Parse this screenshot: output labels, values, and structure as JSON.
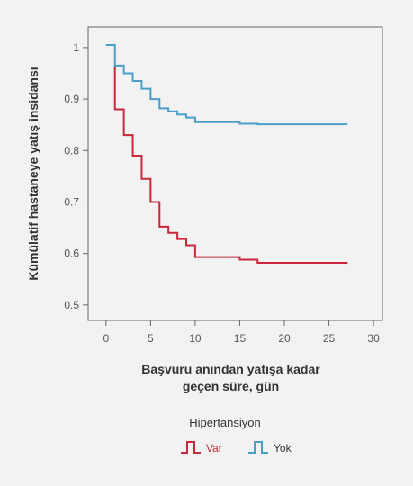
{
  "chart_data": {
    "type": "line",
    "step": true,
    "ylabel": "Kümülatif hastaneye yatış insidansı",
    "xlabel_lines": [
      "Başvuru anından yatışa kadar",
      "geçen süre, gün"
    ],
    "xlim": [
      -2,
      31
    ],
    "ylim": [
      0.47,
      1.04
    ],
    "xticks": [
      0,
      5,
      10,
      15,
      20,
      25,
      30
    ],
    "yticks": [
      0.5,
      0.6,
      0.7,
      0.8,
      0.9,
      1
    ],
    "ytick_labels": [
      "0.5",
      "0.6",
      "0.7",
      "0.8",
      "0.9",
      "1"
    ],
    "grid": false,
    "legend": {
      "title": "Hipertansiyon",
      "position": "bottom-center"
    },
    "series": [
      {
        "name": "Var",
        "color": "#c8283c",
        "x": [
          1,
          1,
          2,
          3,
          4,
          5,
          6,
          7,
          8,
          9,
          10,
          15,
          17,
          27
        ],
        "y": [
          0.965,
          0.88,
          0.83,
          0.79,
          0.745,
          0.7,
          0.652,
          0.64,
          0.628,
          0.616,
          0.593,
          0.588,
          0.582,
          0.58
        ]
      },
      {
        "name": "Yok",
        "color": "#4a9fc8",
        "x": [
          0,
          1,
          2,
          3,
          4,
          5,
          6,
          7,
          8,
          9,
          10,
          15,
          17,
          27
        ],
        "y": [
          1.005,
          0.965,
          0.95,
          0.935,
          0.92,
          0.9,
          0.882,
          0.876,
          0.87,
          0.864,
          0.855,
          0.852,
          0.851,
          0.85
        ]
      }
    ]
  }
}
